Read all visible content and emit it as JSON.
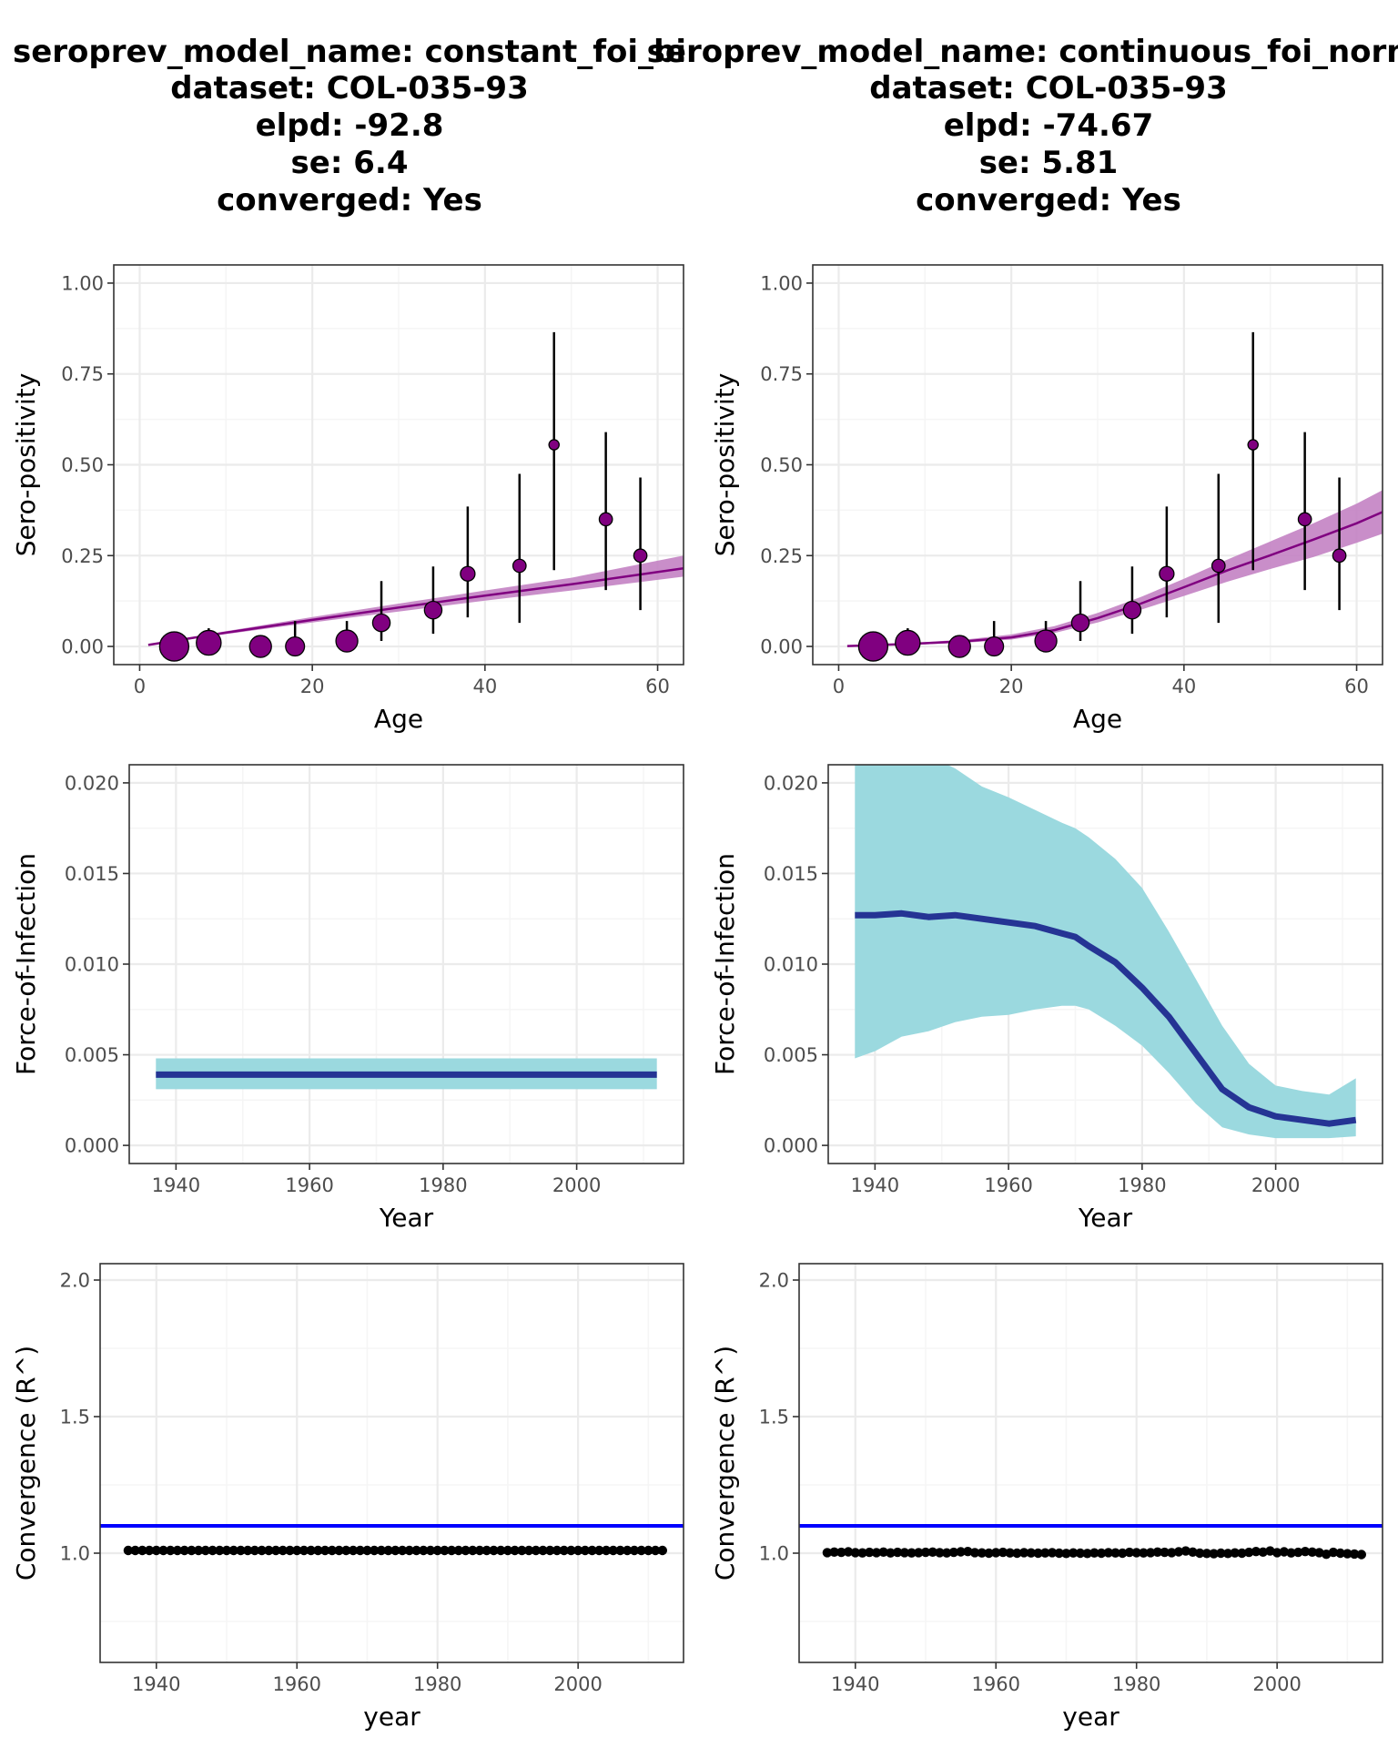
{
  "colors": {
    "panel_border": "#333333",
    "grid_major": "#ebebeb",
    "grid_minor": "#f5f5f5",
    "point_fill": "#800080",
    "prevalence_band": "#c382c3",
    "prevalence_line": "#800080",
    "foi_band": "#9bd9df",
    "foi_line": "#253494",
    "rhat_threshold": "#0000ff",
    "rhat_points": "#000000"
  },
  "columns": [
    {
      "title_lines": [
        "seroprev_model_name: constant_foi_bi",
        "dataset: COL-035-93",
        "elpd: -92.8",
        "se: 6.4",
        "converged: Yes"
      ]
    },
    {
      "title_lines": [
        "seroprev_model_name: continuous_foi_normal",
        "dataset: COL-035-93",
        "elpd: -74.67",
        "se: 5.81",
        "converged: Yes"
      ]
    }
  ],
  "chart_data": [
    {
      "id": "seroprev-constant",
      "type": "scatter",
      "xlabel": "Age",
      "ylabel": "Sero-positivity",
      "xlim": [
        -3,
        63
      ],
      "ylim": [
        -0.05,
        1.05
      ],
      "xticks": [
        0,
        20,
        40,
        60
      ],
      "xtick_labels": [
        "0",
        "20",
        "40",
        "60"
      ],
      "yticks": [
        0,
        0.25,
        0.5,
        0.75,
        1
      ],
      "ytick_labels": [
        "0.00",
        "0.25",
        "0.50",
        "0.75",
        "1.00"
      ],
      "points": [
        {
          "x": 4,
          "y": 0.0,
          "lo": 0.0,
          "hi": 0.02,
          "size": 20
        },
        {
          "x": 8,
          "y": 0.01,
          "lo": 0.0,
          "hi": 0.05,
          "size": 17
        },
        {
          "x": 14,
          "y": 0.0,
          "lo": 0.0,
          "hi": 0.03,
          "size": 15
        },
        {
          "x": 18,
          "y": 0.0,
          "lo": 0.0,
          "hi": 0.07,
          "size": 13
        },
        {
          "x": 24,
          "y": 0.015,
          "lo": 0.0,
          "hi": 0.07,
          "size": 15
        },
        {
          "x": 28,
          "y": 0.065,
          "lo": 0.015,
          "hi": 0.18,
          "size": 12
        },
        {
          "x": 34,
          "y": 0.1,
          "lo": 0.035,
          "hi": 0.22,
          "size": 12
        },
        {
          "x": 38,
          "y": 0.2,
          "lo": 0.08,
          "hi": 0.385,
          "size": 10
        },
        {
          "x": 44,
          "y": 0.222,
          "lo": 0.065,
          "hi": 0.475,
          "size": 9
        },
        {
          "x": 48,
          "y": 0.555,
          "lo": 0.21,
          "hi": 0.865,
          "size": 7
        },
        {
          "x": 54,
          "y": 0.35,
          "lo": 0.155,
          "hi": 0.59,
          "size": 9
        },
        {
          "x": 58,
          "y": 0.25,
          "lo": 0.1,
          "hi": 0.465,
          "size": 9
        }
      ],
      "fit": {
        "x": [
          1,
          10,
          20,
          30,
          40,
          50,
          63
        ],
        "y": [
          0.004,
          0.038,
          0.073,
          0.107,
          0.14,
          0.171,
          0.215
        ],
        "lo": [
          0.003,
          0.034,
          0.066,
          0.096,
          0.126,
          0.154,
          0.192
        ],
        "hi": [
          0.005,
          0.042,
          0.081,
          0.118,
          0.154,
          0.189,
          0.25
        ]
      }
    },
    {
      "id": "seroprev-continuous",
      "type": "scatter",
      "xlabel": "Age",
      "ylabel": "Sero-positivity",
      "xlim": [
        -3,
        63
      ],
      "ylim": [
        -0.05,
        1.05
      ],
      "xticks": [
        0,
        20,
        40,
        60
      ],
      "xtick_labels": [
        "0",
        "20",
        "40",
        "60"
      ],
      "yticks": [
        0,
        0.25,
        0.5,
        0.75,
        1
      ],
      "ytick_labels": [
        "0.00",
        "0.25",
        "0.50",
        "0.75",
        "1.00"
      ],
      "points": [
        {
          "x": 4,
          "y": 0.0,
          "lo": 0.0,
          "hi": 0.02,
          "size": 20
        },
        {
          "x": 8,
          "y": 0.01,
          "lo": 0.0,
          "hi": 0.05,
          "size": 17
        },
        {
          "x": 14,
          "y": 0.0,
          "lo": 0.0,
          "hi": 0.03,
          "size": 15
        },
        {
          "x": 18,
          "y": 0.0,
          "lo": 0.0,
          "hi": 0.07,
          "size": 13
        },
        {
          "x": 24,
          "y": 0.015,
          "lo": 0.0,
          "hi": 0.07,
          "size": 15
        },
        {
          "x": 28,
          "y": 0.065,
          "lo": 0.015,
          "hi": 0.18,
          "size": 12
        },
        {
          "x": 34,
          "y": 0.1,
          "lo": 0.035,
          "hi": 0.22,
          "size": 12
        },
        {
          "x": 38,
          "y": 0.2,
          "lo": 0.08,
          "hi": 0.385,
          "size": 10
        },
        {
          "x": 44,
          "y": 0.222,
          "lo": 0.065,
          "hi": 0.475,
          "size": 9
        },
        {
          "x": 48,
          "y": 0.555,
          "lo": 0.21,
          "hi": 0.865,
          "size": 7
        },
        {
          "x": 54,
          "y": 0.35,
          "lo": 0.155,
          "hi": 0.59,
          "size": 9
        },
        {
          "x": 58,
          "y": 0.25,
          "lo": 0.1,
          "hi": 0.465,
          "size": 9
        }
      ],
      "fit": {
        "x": [
          1,
          5,
          10,
          15,
          20,
          25,
          30,
          35,
          40,
          45,
          50,
          55,
          60,
          63
        ],
        "y": [
          0.001,
          0.004,
          0.009,
          0.015,
          0.025,
          0.045,
          0.078,
          0.118,
          0.163,
          0.209,
          0.251,
          0.294,
          0.339,
          0.37
        ],
        "lo": [
          0.0,
          0.002,
          0.006,
          0.011,
          0.019,
          0.037,
          0.066,
          0.101,
          0.139,
          0.178,
          0.213,
          0.246,
          0.285,
          0.31
        ],
        "hi": [
          0.002,
          0.006,
          0.012,
          0.02,
          0.033,
          0.056,
          0.092,
          0.136,
          0.186,
          0.239,
          0.289,
          0.339,
          0.393,
          0.43
        ]
      }
    },
    {
      "id": "foi-constant",
      "type": "area",
      "xlabel": "Year",
      "ylabel": "Force-of-Infection",
      "xlim": [
        1933,
        2016
      ],
      "ylim": [
        -0.001,
        0.021
      ],
      "xticks": [
        1940,
        1960,
        1980,
        2000
      ],
      "xtick_labels": [
        "1940",
        "1960",
        "1980",
        "2000"
      ],
      "yticks": [
        0,
        0.005,
        0.01,
        0.015,
        0.02
      ],
      "ytick_labels": [
        "0.000",
        "0.005",
        "0.010",
        "0.015",
        "0.020"
      ],
      "x": [
        1937,
        2012
      ],
      "y": [
        0.0039,
        0.0039
      ],
      "lo": [
        0.0031,
        0.0031
      ],
      "hi": [
        0.0048,
        0.0048
      ]
    },
    {
      "id": "foi-continuous",
      "type": "area",
      "xlabel": "Year",
      "ylabel": "Force-of-Infection",
      "xlim": [
        1933,
        2016
      ],
      "ylim": [
        -0.001,
        0.021
      ],
      "xticks": [
        1940,
        1960,
        1980,
        2000
      ],
      "xtick_labels": [
        "1940",
        "1960",
        "1980",
        "2000"
      ],
      "yticks": [
        0,
        0.005,
        0.01,
        0.015,
        0.02
      ],
      "ytick_labels": [
        "0.000",
        "0.005",
        "0.010",
        "0.015",
        "0.020"
      ],
      "x": [
        1937,
        1940,
        1944,
        1948,
        1952,
        1956,
        1960,
        1964,
        1968,
        1970,
        1972,
        1976,
        1980,
        1984,
        1988,
        1992,
        1996,
        2000,
        2004,
        2008,
        2012
      ],
      "y": [
        0.0127,
        0.0127,
        0.0128,
        0.0126,
        0.0127,
        0.0125,
        0.0123,
        0.0121,
        0.0117,
        0.0115,
        0.011,
        0.0101,
        0.0087,
        0.0071,
        0.0051,
        0.0031,
        0.0021,
        0.0016,
        0.0014,
        0.0012,
        0.0014
      ],
      "lo": [
        0.0048,
        0.0052,
        0.006,
        0.0063,
        0.0068,
        0.0071,
        0.0072,
        0.0075,
        0.0077,
        0.0077,
        0.0075,
        0.0066,
        0.0055,
        0.004,
        0.0023,
        0.001,
        0.0006,
        0.0004,
        0.0004,
        0.0004,
        0.0005
      ],
      "hi": [
        0.024,
        0.024,
        0.0235,
        0.0215,
        0.0208,
        0.0198,
        0.0192,
        0.0185,
        0.0178,
        0.0175,
        0.017,
        0.0158,
        0.0142,
        0.0118,
        0.0092,
        0.0066,
        0.0045,
        0.0033,
        0.003,
        0.0028,
        0.0037
      ]
    },
    {
      "id": "rhat-constant",
      "type": "scatter",
      "xlabel": "year",
      "ylabel": "Convergence (R^)",
      "xlim": [
        1932,
        2015
      ],
      "ylim": [
        0.6,
        2.06
      ],
      "xticks": [
        1940,
        1960,
        1980,
        2000
      ],
      "xtick_labels": [
        "1940",
        "1960",
        "1980",
        "2000"
      ],
      "yticks": [
        1,
        1.5,
        2
      ],
      "ytick_labels": [
        "1.0",
        "1.5",
        "2.0"
      ],
      "threshold": 1.1,
      "x_start": 1936,
      "x_end": 2012,
      "values": [
        1.01,
        1.01,
        1.01,
        1.01,
        1.01,
        1.01,
        1.01,
        1.01,
        1.01,
        1.01,
        1.01,
        1.01,
        1.01,
        1.01,
        1.01,
        1.01,
        1.01,
        1.01,
        1.01,
        1.01,
        1.01,
        1.01,
        1.01,
        1.01,
        1.01,
        1.01,
        1.01,
        1.01,
        1.01,
        1.01,
        1.01,
        1.01,
        1.01,
        1.01,
        1.01,
        1.01,
        1.01,
        1.01,
        1.01,
        1.01,
        1.01,
        1.01,
        1.01,
        1.01,
        1.01,
        1.01,
        1.01,
        1.01,
        1.01,
        1.01,
        1.01,
        1.01,
        1.01,
        1.01,
        1.01,
        1.01,
        1.01,
        1.01,
        1.01,
        1.01,
        1.01,
        1.01,
        1.01,
        1.01,
        1.01,
        1.01,
        1.01,
        1.01,
        1.01,
        1.01,
        1.01,
        1.01,
        1.01,
        1.01,
        1.01,
        1.01,
        1.01
      ]
    },
    {
      "id": "rhat-continuous",
      "type": "scatter",
      "xlabel": "year",
      "ylabel": "Convergence (R^)",
      "xlim": [
        1932,
        2015
      ],
      "ylim": [
        0.6,
        2.06
      ],
      "xticks": [
        1940,
        1960,
        1980,
        2000
      ],
      "xtick_labels": [
        "1940",
        "1960",
        "1980",
        "2000"
      ],
      "yticks": [
        1,
        1.5,
        2
      ],
      "ytick_labels": [
        "1.0",
        "1.5",
        "2.0"
      ],
      "threshold": 1.1,
      "x_start": 1936,
      "x_end": 2012,
      "values": [
        1.002,
        1.004,
        1.003,
        1.005,
        1.002,
        1.001,
        1.003,
        1.002,
        1.004,
        1.001,
        1.003,
        1.002,
        1.001,
        1.002,
        1.003,
        1.004,
        1.002,
        1.001,
        1.003,
        1.005,
        1.006,
        1.002,
        1.001,
        1.0,
        1.002,
        1.003,
        1.001,
        1.0,
        1.002,
        1.001,
        1.0,
        1.001,
        1.002,
        1.0,
        0.999,
        1.001,
        1.0,
        0.999,
        1.001,
        1.0,
        1.002,
        1.001,
        1.0,
        1.003,
        1.002,
        1.001,
        1.002,
        1.004,
        1.003,
        1.002,
        1.005,
        1.008,
        1.004,
        1.0,
        0.999,
        0.998,
        1.0,
        0.999,
        1.001,
        1.0,
        1.003,
        1.006,
        1.004,
        1.008,
        1.002,
        1.005,
        1.001,
        1.003,
        1.006,
        1.004,
        1.002,
        0.996,
        1.003,
        1.0,
        0.998,
        0.997,
        0.995
      ]
    }
  ]
}
